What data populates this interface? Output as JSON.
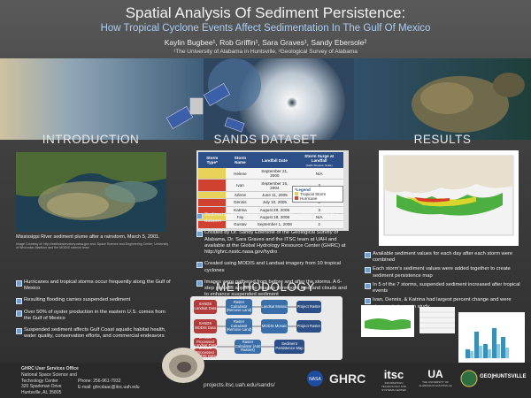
{
  "header": {
    "title": "Spatial Analysis Of Sediment Persistence:",
    "subtitle": "How Tropical Cyclone Events Affect Sedimentation In The Gulf Of Mexico",
    "authors": "Kaylin Bugbee¹, Rob Griffin¹, Sara Graves¹, Sandy Ebersole²",
    "affiliations": "¹The University of Alabama in Huntsville, ²Geological Survey of Alabama"
  },
  "introduction": {
    "heading": "INTRODUCTION",
    "caption": "Mississippi River sediment plume after a rainstorm, March 5, 2001.",
    "credit": "Image Courtesy of: http://earthobservatory.nasa.gov and: Space Science and Engineering Center, University of Wisconsin-Madison and the MODIS science team",
    "bullets": [
      "Hurricanes and tropical storms occur frequently along the Gulf of Mexico",
      "Resulting flooding carries suspended sediment",
      "Over 50% of oyster production in the eastern U.S. comes from the Gulf of Mexico",
      "Suspended sediment affects Gulf Coast aquatic habitat health, water quality, conservation efforts, and commercial endeavors"
    ]
  },
  "sands_dataset": {
    "heading": "SANDS DATASET",
    "table": {
      "header": [
        "Storm Type*",
        "Storm Name",
        "Landfall Date",
        "Storm Surge at Landfall"
      ],
      "header_note": "(Saffir-Simpson Scale)",
      "rows": [
        [
          "",
          "Helene",
          "September 21, 2000",
          "N/A"
        ],
        [
          "",
          "Ivan",
          "September 16, 2004",
          "3"
        ],
        [
          "",
          "Arlene",
          "June 11, 2005",
          "N/A"
        ],
        [
          "",
          "Dennis",
          "July 10, 2005",
          "3"
        ],
        [
          "",
          "Katrina",
          "August 29, 2005",
          "3"
        ],
        [
          "",
          "Fay",
          "August 18, 2008",
          "N/A"
        ],
        [
          "",
          "Gustav",
          "September 1, 2008",
          "2"
        ]
      ],
      "storm_types": [
        "Tropical Storm",
        "Hurricane",
        "Tropical Storm",
        "Hurricane",
        "Hurricane",
        "Tropical Storm",
        "Hurricane"
      ],
      "legend": {
        "title": "*Legend",
        "items": [
          "Tropical Storm",
          "Hurricane"
        ]
      }
    },
    "bullets": [
      "Sediment Analysis Network for Decision Support (SANDS) dataset",
      "Created by Dr. Sandy Ebersole of the Geological Survey of Alabama, Dr. Sara Graves and the ITSC team at UAH and available at the Global Hydrology Resource Center (GHRC) at http://ghrc.nsstc.nasa.gov/hydro",
      "Created using MODIS and Landsat imagery from 10 tropical cyclones",
      "Images were gathered from before and after the storms. A 6-step process applied to images to remove land and clouds and to enhance suspended sediment"
    ]
  },
  "methodology": {
    "heading": "METHODOLOGY",
    "nodes": [
      "SANDS Landsat Data",
      "Raster Calculator (Remove Land)",
      "Landsat Mosaic",
      "Project Raster",
      "SANDS MODIS Data",
      "Raster Calculator (Remove Land)",
      "MODIS Mosaic",
      "Project Raster",
      "SANDS Processed Landsat Data",
      "SANDS Processed MODIS Data",
      "Raster Calculator (Add Rasters)",
      "Sediment Persistence Map"
    ]
  },
  "results": {
    "heading": "RESULTS",
    "bullets": [
      "Available sediment values for each day after each storm were combined",
      "Each storm's sediment values were added together to create sediment persistence map",
      "In 5 of the 7 storms, suspended sediment increased after tropical events",
      "Ivan, Dennis, & Katrina had largest percent change and were strongest storms in study"
    ]
  },
  "footer": {
    "office": "GHRC User Services Office",
    "center": "National Space Science and Technology Center",
    "address": "320 Sparkman Drive",
    "city": "Huntsville, AL 35805",
    "phone": "Phone: 256-961-7932",
    "email": "E-mail: ghrcdaac@itsc.uah.edu",
    "url": "projects.itsc.uah.edu/sands/",
    "logos": [
      "GHRC",
      "itsc",
      "INFORMATION TECHNOLOGY AND SYSTEMS CENTER",
      "UA",
      "THE UNIVERSITY OF ALABAMA IN HUNTSVILLE",
      "GEO|HUNTSVILLE"
    ]
  }
}
